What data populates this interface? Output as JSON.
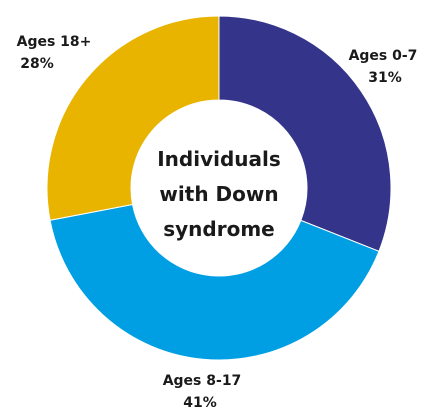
{
  "chart_data": {
    "type": "pie",
    "variant": "donut",
    "center_title": [
      "Individuals",
      "with Down",
      "syndrome"
    ],
    "slices": [
      {
        "label": "Ages 0-7",
        "percent_label": "31%",
        "value": 31,
        "color": "#33348a"
      },
      {
        "label": "Ages 8-17",
        "percent_label": "41%",
        "value": 41,
        "color": "#009fe3"
      },
      {
        "label": "Ages 18+",
        "percent_label": "28%",
        "value": 28,
        "color": "#e8b400"
      }
    ],
    "start_angle": "12 o'clock",
    "direction": "clockwise"
  }
}
